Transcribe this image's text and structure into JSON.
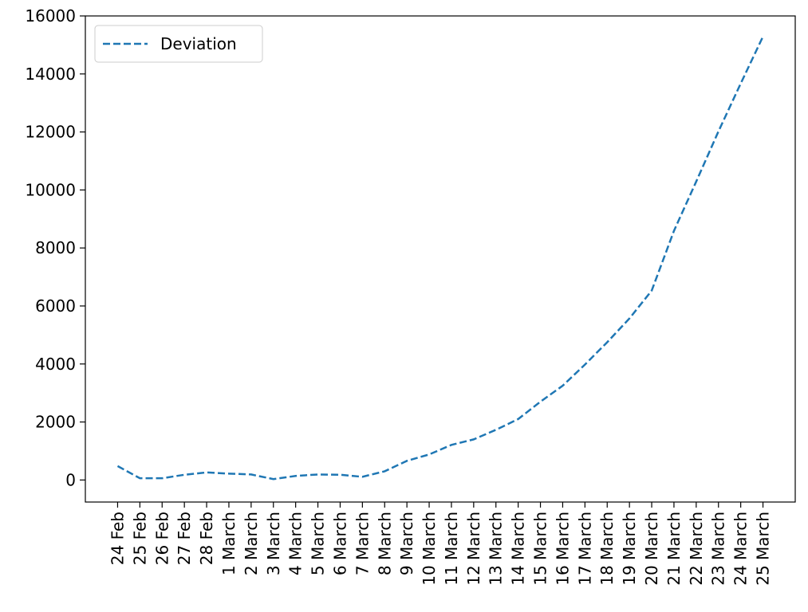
{
  "chart_data": {
    "type": "line",
    "categories": [
      "24 Feb",
      "25 Feb",
      "26 Feb",
      "27 Feb",
      "28 Feb",
      "1 March",
      "2 March",
      "3 March",
      "4 March",
      "5 March",
      "6 March",
      "7 March",
      "8 March",
      "9 March",
      "10 March",
      "11 March",
      "12 March",
      "13 March",
      "14 March",
      "15 March",
      "16 March",
      "17 March",
      "18 March",
      "19 March",
      "20 March",
      "21 March",
      "22 March",
      "23 March",
      "24 March",
      "25 March"
    ],
    "series": [
      {
        "name": "Deviation",
        "color": "#1f77b4",
        "linestyle": "dashed",
        "values": [
          480,
          60,
          60,
          180,
          260,
          220,
          190,
          30,
          140,
          190,
          180,
          110,
          300,
          660,
          880,
          1210,
          1400,
          1730,
          2100,
          2700,
          3250,
          3980,
          4750,
          5570,
          6530,
          8590,
          10290,
          12020,
          13670,
          15290
        ]
      }
    ],
    "ylim": [
      -760,
      16000
    ],
    "yticks": [
      0,
      2000,
      4000,
      6000,
      8000,
      10000,
      12000,
      14000,
      16000
    ],
    "legend": "upper left",
    "grid": false
  }
}
